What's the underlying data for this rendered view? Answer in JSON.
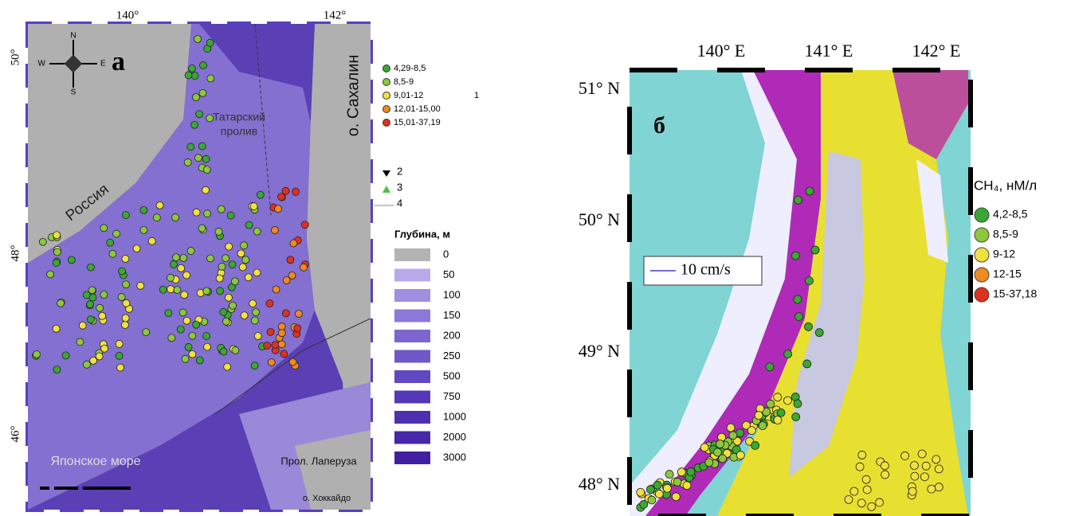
{
  "panel_a": {
    "label": "а",
    "lon_ticks": [
      "140°",
      "142°"
    ],
    "lat_ticks": [
      "50°",
      "48°",
      "46°"
    ],
    "compass": {
      "n": "N",
      "e": "E",
      "s": "S",
      "w": "W"
    },
    "places": {
      "russia": "Россия",
      "strait_1": "Татарский",
      "strait_2": "пролив",
      "sakhalin": "о. Сахалин",
      "sea": "Японское море",
      "laperouse": "Прол. Лаперуза",
      "hokkaido": "о. Хоккайдо"
    },
    "methane_legend": {
      "note": "1",
      "items": [
        {
          "label": "4,29-8,5",
          "color": "#3aa832"
        },
        {
          "label": "8,5-9",
          "color": "#8cc83c"
        },
        {
          "label": "9,01-12",
          "color": "#f0e040"
        },
        {
          "label": "12,01-15,00",
          "color": "#f08a20"
        },
        {
          "label": "15,01-37,19",
          "color": "#e03020"
        }
      ]
    },
    "symbol_legend": [
      "2",
      "3",
      "4"
    ],
    "depth_legend": {
      "title": "Глубина, м",
      "items": [
        {
          "label": "0",
          "color": "#b3b3b3"
        },
        {
          "label": "50",
          "color": "#b9a9ea"
        },
        {
          "label": "100",
          "color": "#a08ee0"
        },
        {
          "label": "150",
          "color": "#8c78d8"
        },
        {
          "label": "200",
          "color": "#7d66d0"
        },
        {
          "label": "250",
          "color": "#7058c8"
        },
        {
          "label": "500",
          "color": "#6048c0"
        },
        {
          "label": "750",
          "color": "#5538b8"
        },
        {
          "label": "1000",
          "color": "#4c30b0"
        },
        {
          "label": "2000",
          "color": "#4628a8"
        },
        {
          "label": "3000",
          "color": "#4020a0"
        }
      ]
    }
  },
  "panel_b": {
    "label": "б",
    "lon_ticks": [
      "140° E",
      "141° E",
      "142° E"
    ],
    "lat_ticks": [
      "51° N",
      "50° N",
      "49° N",
      "48° N"
    ],
    "current_scale": "10 cm/s",
    "legend": {
      "title": "CH₄, нМ/л",
      "items": [
        {
          "label": "4,2-8,5",
          "color": "#3aa832"
        },
        {
          "label": "8,5-9",
          "color": "#8cc83c"
        },
        {
          "label": "9-12",
          "color": "#f0e040"
        },
        {
          "label": "12-15",
          "color": "#f08a20"
        },
        {
          "label": "15-37,18",
          "color": "#e03020"
        }
      ]
    }
  }
}
